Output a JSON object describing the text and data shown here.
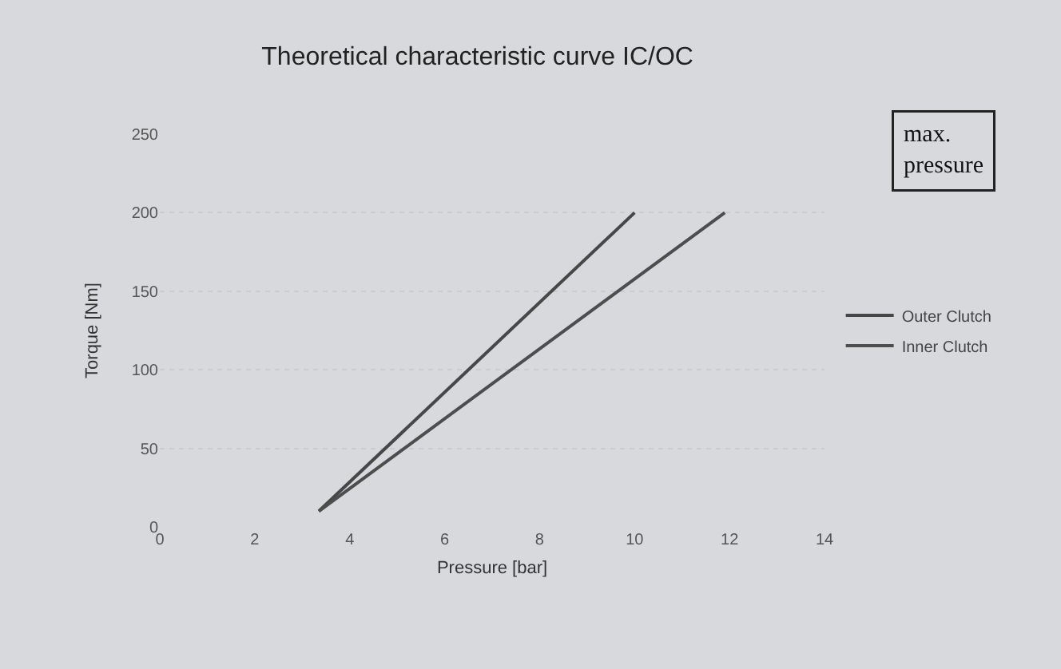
{
  "chart_data": {
    "type": "line",
    "title": "Theoretical characteristic curve IC/OC",
    "xlabel": "Pressure [bar]",
    "ylabel": "Torque [Nm]",
    "series": [
      {
        "name": "Outer Clutch",
        "color": "#474747",
        "x": [
          3.35,
          10
        ],
        "values": [
          10,
          200
        ]
      },
      {
        "name": "Inner Clutch",
        "color": "#4d4d4d",
        "x": [
          3.35,
          11.9
        ],
        "values": [
          10,
          200
        ]
      }
    ],
    "xlim": [
      0,
      14
    ],
    "xticks": [
      0,
      2,
      4,
      6,
      8,
      10,
      12,
      14
    ],
    "ylim": [
      0,
      250
    ],
    "yticks": [
      0,
      50,
      100,
      150,
      200,
      250
    ],
    "grid": "y",
    "legend": "right",
    "marker": "none",
    "line_style": "solid",
    "annotations": [
      "max.\npressure"
    ]
  }
}
